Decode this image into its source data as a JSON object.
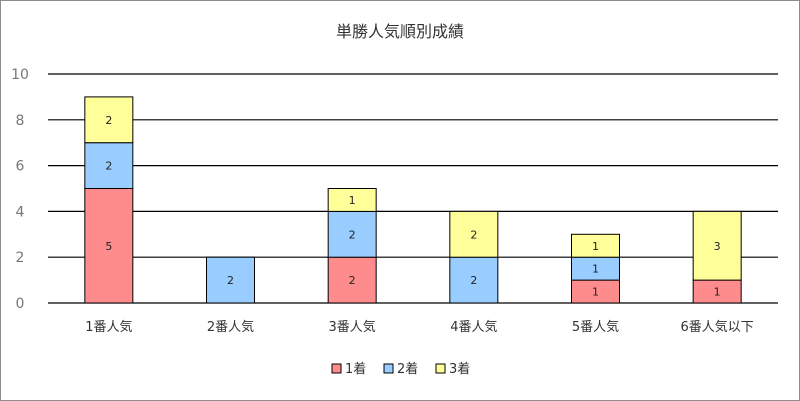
{
  "chart_data": {
    "type": "bar",
    "stacked": true,
    "title": "単勝人気順別成績",
    "xlabel": "",
    "ylabel": "",
    "categories": [
      "1番人気",
      "2番人気",
      "3番人気",
      "4番人気",
      "5番人気",
      "6番人気以下"
    ],
    "series": [
      {
        "name": "1着",
        "color": "#ff8c8c",
        "values": [
          5,
          0,
          2,
          0,
          1,
          1
        ]
      },
      {
        "name": "2着",
        "color": "#99ccff",
        "values": [
          2,
          2,
          2,
          2,
          1,
          0
        ]
      },
      {
        "name": "3着",
        "color": "#ffff99",
        "values": [
          2,
          0,
          1,
          2,
          1,
          3
        ]
      }
    ],
    "ylim": [
      0,
      10
    ],
    "yticks": [
      0,
      2,
      4,
      6,
      8,
      10
    ],
    "grid": true,
    "legend": "bottom"
  }
}
